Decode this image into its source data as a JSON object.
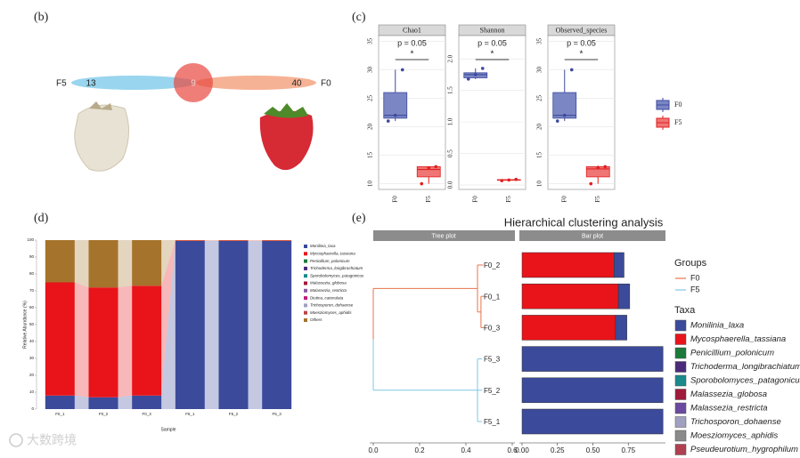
{
  "panel_labels": [
    "(b)",
    "(c)",
    "(d)",
    "(e)"
  ],
  "watermark": "大数跨境",
  "box_legend": [
    {
      "name": "F0",
      "fill": "#7b86c4",
      "stroke": "#3d4a9c"
    },
    {
      "name": "F5",
      "fill": "#f07575",
      "stroke": "#e02020"
    }
  ],
  "chart_data": [
    {
      "type": "venn",
      "sets": [
        {
          "name": "F5",
          "only": 13,
          "color": "#87ceeb"
        },
        {
          "name": "F0",
          "only": 40,
          "color": "#f4a582"
        }
      ],
      "shared": 9,
      "shared_color": "#e8473f"
    },
    {
      "type": "box",
      "title": "Chao1",
      "annotation": "p = 0.05",
      "significance": "*",
      "categories": [
        "F0",
        "F5"
      ],
      "min": [
        21,
        10
      ],
      "q1": [
        21.5,
        11.2
      ],
      "median": [
        22,
        12.5
      ],
      "q3": [
        26,
        13
      ],
      "max": [
        30,
        13
      ],
      "points": [
        [
          21,
          22,
          30
        ],
        [
          10,
          12.8,
          13
        ]
      ],
      "ylim": [
        9,
        36
      ],
      "yticks": [
        10,
        15,
        20,
        25,
        30,
        35
      ]
    },
    {
      "type": "box",
      "title": "Shannon",
      "annotation": "p = 0.05",
      "significance": "*",
      "categories": [
        "F0",
        "F5"
      ],
      "min": [
        1.68,
        0.07
      ],
      "q1": [
        1.7,
        0.075
      ],
      "median": [
        1.75,
        0.08
      ],
      "q3": [
        1.78,
        0.085
      ],
      "max": [
        1.85,
        0.09
      ],
      "points": [
        [
          1.68,
          1.75,
          1.85
        ],
        [
          0.07,
          0.08,
          0.09
        ]
      ],
      "ylim": [
        -0.07,
        2.37
      ],
      "yticks": [
        {
          "value": 0,
          "label": "0.0"
        },
        0.5,
        {
          "value": 1,
          "label": "1.0"
        },
        1.5,
        {
          "value": 2,
          "label": "2.0"
        }
      ]
    },
    {
      "type": "box",
      "title": "Observed_species",
      "annotation": "p = 0.05",
      "significance": "*",
      "categories": [
        "F0",
        "F5"
      ],
      "min": [
        21,
        10
      ],
      "q1": [
        21.5,
        11.2
      ],
      "median": [
        22,
        12.6
      ],
      "q3": [
        26,
        13
      ],
      "max": [
        30,
        13.2
      ],
      "points": [
        [
          21,
          22,
          30
        ],
        [
          10,
          12.8,
          13
        ]
      ],
      "ylim": [
        9,
        36
      ],
      "yticks": [
        10,
        15,
        20,
        25,
        30,
        35
      ]
    },
    {
      "type": "stacked_bar",
      "x_label": "Sample",
      "y_label": "Relative Abundance (%)",
      "categories": [
        "F0_1",
        "F0_2",
        "F0_3",
        "F5_1",
        "F5_2",
        "F5_3"
      ],
      "ylim": [
        0,
        100
      ],
      "yticks": [
        0,
        10,
        20,
        30,
        40,
        50,
        60,
        70,
        80,
        90,
        100
      ],
      "series": [
        {
          "name": "Monilinia_laxa",
          "color": "#3b4a9a",
          "values": [
            8,
            7,
            8,
            99.5,
            99.5,
            99.5
          ]
        },
        {
          "name": "Mycosphaerella_tassiana",
          "color": "#e8141a",
          "values": [
            67,
            65,
            65,
            0.3,
            0.3,
            0.3
          ]
        },
        {
          "name": "Penicillium_polonicum",
          "color": "#1b7a3a",
          "values": [
            0,
            0,
            0,
            0,
            0,
            0
          ]
        },
        {
          "name": "Trichoderma_longibrachiatum",
          "color": "#4b2a7a",
          "values": [
            0,
            0,
            0,
            0,
            0,
            0
          ]
        },
        {
          "name": "Sporobolomyces_patagonicus",
          "color": "#1a8a8a",
          "values": [
            0,
            0,
            0,
            0,
            0,
            0
          ]
        },
        {
          "name": "Malassezia_globosa",
          "color": "#a01a3a",
          "values": [
            0,
            0,
            0,
            0,
            0,
            0
          ]
        },
        {
          "name": "Malassezia_restricta",
          "color": "#8a5aa0",
          "values": [
            0,
            0,
            0,
            0,
            0,
            0
          ]
        },
        {
          "name": "Diutina_catenulata",
          "color": "#c01a7a",
          "values": [
            0,
            0,
            0,
            0,
            0,
            0
          ]
        },
        {
          "name": "Trichosporon_dohaense",
          "color": "#a0a0c0",
          "values": [
            0,
            0,
            0,
            0,
            0,
            0
          ]
        },
        {
          "name": "Moesziomyces_aphidis",
          "color": "#bb4444",
          "values": [
            0,
            0,
            0,
            0,
            0,
            0
          ]
        },
        {
          "name": "Others",
          "color": "#a5732b",
          "values": [
            25,
            28,
            27,
            0.2,
            0.2,
            0.2
          ]
        }
      ]
    },
    {
      "type": "cluster",
      "title": "Hierarchical clustering analysis",
      "tree_strip": "Tree plot",
      "bar_strip": "Bar plot",
      "groups_title": "Groups",
      "taxa_title": "Taxa",
      "groups": [
        {
          "name": "F0",
          "color": "#e8734a"
        },
        {
          "name": "F5",
          "color": "#7ec8e3"
        }
      ],
      "categories": [
        "F0_2",
        "F0_1",
        "F0_3",
        "F5_3",
        "F5_2",
        "F5_1"
      ],
      "tree": {
        "height": 0,
        "children": [
          {
            "height": 0.45,
            "children": [
              {
                "leaf": 0,
                "height": 0.475
              },
              {
                "height": 0.465,
                "children": [
                  {
                    "leaf": 1,
                    "height": 0.48
                  },
                  {
                    "leaf": 2,
                    "height": 0.48
                  }
                ]
              }
            ]
          },
          {
            "height": 0.45,
            "children": [
              {
                "leaf": 3,
                "height": 0.47
              },
              {
                "leaf": 4,
                "height": 0.47
              },
              {
                "leaf": 5,
                "height": 0.47
              }
            ]
          }
        ]
      },
      "tree_xlim": [
        0,
        0.6
      ],
      "tree_xticks": [
        {
          "value": 0,
          "label": "0.0"
        },
        0.2,
        0.4,
        0.6
      ],
      "bar_xlim": [
        0,
        1
      ],
      "bar_xticks": [
        {
          "value": 0,
          "label": "0.00"
        },
        {
          "value": 0.25,
          "label": "0.25"
        },
        {
          "value": 0.5,
          "label": "0.50"
        },
        0.75
      ],
      "series": [
        {
          "name": "Monilinia_laxa",
          "color": "#3b4a9a",
          "values": [
            0.07,
            0.08,
            0.08,
            0.995,
            0.995,
            0.995
          ]
        },
        {
          "name": "Mycosphaerella_tassiana",
          "color": "#e8141a",
          "values": [
            0.65,
            0.68,
            0.66,
            0,
            0,
            0
          ]
        },
        {
          "name": "Penicillium_polonicum",
          "color": "#1b7a3a",
          "values": [
            0,
            0,
            0,
            0,
            0,
            0
          ]
        },
        {
          "name": "Trichoderma_longibrachiatum",
          "color": "#4b2a7a",
          "values": [
            0,
            0,
            0,
            0,
            0,
            0
          ]
        },
        {
          "name": "Sporobolomyces_patagonicus",
          "color": "#1a8a8a",
          "values": [
            0,
            0,
            0,
            0,
            0,
            0
          ]
        },
        {
          "name": "Malassezia_globosa",
          "color": "#a01a3a",
          "values": [
            0,
            0,
            0,
            0,
            0,
            0
          ]
        },
        {
          "name": "Malassezia_restricta",
          "color": "#6a4aa0",
          "values": [
            0,
            0,
            0,
            0,
            0,
            0
          ]
        },
        {
          "name": "Trichosporon_dohaense",
          "color": "#a0a0c0",
          "values": [
            0,
            0,
            0,
            0,
            0,
            0
          ]
        },
        {
          "name": "Moesziomyces_aphidis",
          "color": "#8a8a8a",
          "values": [
            0,
            0,
            0,
            0,
            0,
            0
          ]
        },
        {
          "name": "Pseudeurotium_hygrophilum",
          "color": "#b04050",
          "values": [
            0,
            0,
            0,
            0,
            0,
            0
          ]
        }
      ]
    }
  ]
}
